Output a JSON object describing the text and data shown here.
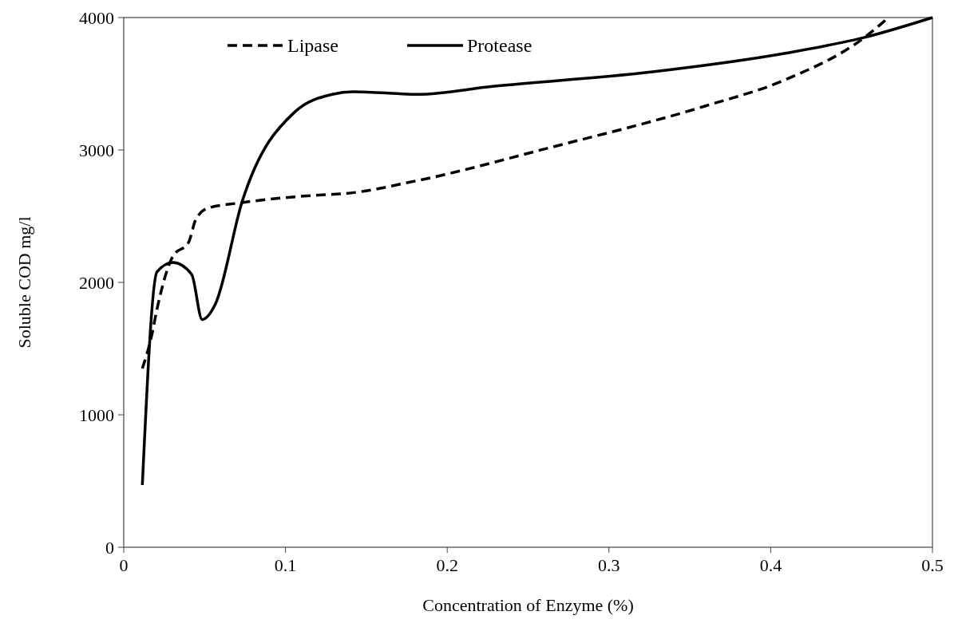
{
  "chart_data": {
    "type": "line",
    "xlabel": "Concentration of Enzyme (%)",
    "ylabel": "Soluble COD mg/l",
    "xlim": [
      0,
      0.5
    ],
    "xticks": [
      0,
      0.1,
      0.2,
      0.3,
      0.4,
      0.5
    ],
    "ylim": [
      0,
      4000
    ],
    "yticks": [
      0,
      1000,
      2000,
      3000,
      4000
    ],
    "grid": false,
    "legend": "top left",
    "marker": "none",
    "series": [
      {
        "name": "Lipase",
        "color": "#000000",
        "line_style": "dashed",
        "x": [
          0.0115,
          0.0173,
          0.0206,
          0.0305,
          0.04,
          0.0444,
          0.0518,
          0.0716,
          0.121,
          0.136,
          0.182,
          0.261,
          0.359,
          0.409,
          0.458,
          0.471
        ],
        "values": [
          1350,
          1600,
          1800,
          2200,
          2300,
          2470,
          2560,
          2600,
          2660,
          2670,
          2770,
          3010,
          3330,
          3530,
          3850,
          3980
        ]
      },
      {
        "name": "Protease",
        "color": "#000000",
        "line_style": "solid",
        "x": [
          0.0115,
          0.0206,
          0.0305,
          0.042,
          0.0485,
          0.0568,
          0.0732,
          0.106,
          0.129,
          0.142,
          0.182,
          0.228,
          0.327,
          0.409,
          0.458,
          0.5
        ],
        "values": [
          470,
          2080,
          2150,
          2060,
          1720,
          1840,
          2610,
          3290,
          3420,
          3440,
          3420,
          3480,
          3590,
          3730,
          3850,
          4000
        ]
      }
    ]
  }
}
